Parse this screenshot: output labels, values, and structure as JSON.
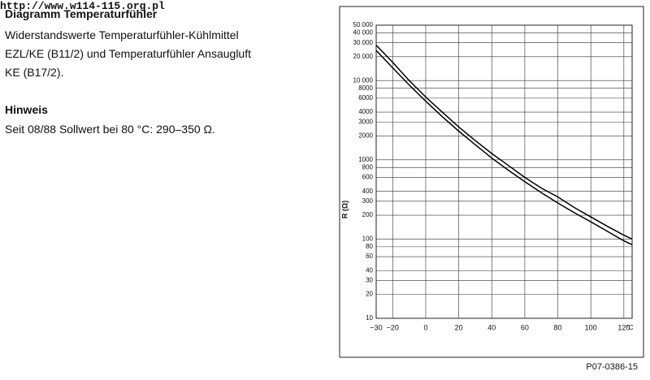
{
  "header": {
    "url": "http://www.w114-115.org.pl",
    "title": "Diagramm Temperaturfühler"
  },
  "description": [
    "Widerstandswerte Temperaturfühler-Kühlmittel",
    "EZL/KE (B11/2) und Temperaturfühler Ansaugluft",
    "KE (B17/2)."
  ],
  "note": {
    "title": "Hinweis",
    "text": "Seit 08/88 Sollwert bei 80 °C: 290–350 Ω."
  },
  "chart_data": {
    "type": "line",
    "ylabel": "R (Ω)",
    "xlabel": "°C",
    "log_y": true,
    "grid": true,
    "color": "#000000",
    "x": [
      -30,
      -20,
      -10,
      0,
      10,
      20,
      30,
      40,
      50,
      60,
      70,
      80,
      90,
      100,
      110,
      120,
      125
    ],
    "series": [
      {
        "color": "#000000",
        "values": [
          28000,
          17000,
          10000,
          6200,
          4000,
          2600,
          1750,
          1200,
          850,
          600,
          440,
          340,
          250,
          190,
          145,
          112,
          100
        ]
      },
      {
        "color": "#000000",
        "values": [
          24000,
          14500,
          8800,
          5500,
          3500,
          2300,
          1550,
          1050,
          740,
          530,
          385,
          285,
          215,
          165,
          125,
          95,
          85
        ]
      }
    ],
    "xlim": [
      -30,
      125
    ],
    "xticks": [
      {
        "value": -30,
        "label": "−30"
      },
      {
        "value": -20,
        "label": "−20"
      },
      0,
      20,
      40,
      60,
      80,
      100,
      120
    ],
    "ylim": [
      10,
      50000
    ],
    "yticks": [
      10,
      20,
      30,
      40,
      60,
      80,
      100,
      200,
      300,
      400,
      600,
      800,
      1000,
      2000,
      3000,
      4000,
      6000,
      8000,
      {
        "value": 10000,
        "label": "10 000"
      },
      {
        "value": 20000,
        "label": "20 000"
      },
      {
        "value": 30000,
        "label": "30 000"
      },
      {
        "value": 40000,
        "label": "40 000"
      },
      {
        "value": 50000,
        "label": "50 000"
      }
    ]
  },
  "figure_id": "P07-0386-15"
}
